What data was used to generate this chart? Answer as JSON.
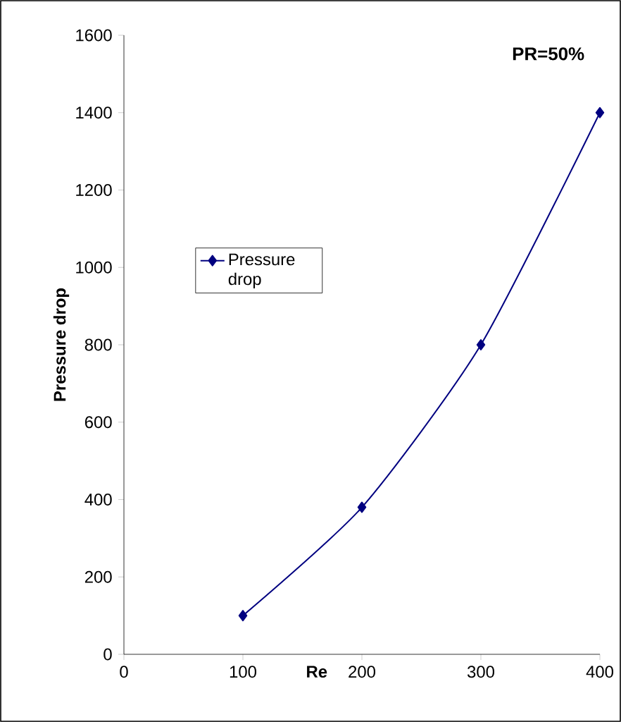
{
  "chart_data": {
    "type": "line",
    "xlabel": "Re",
    "ylabel": "Pressure drop",
    "annotations": [
      "PR=50%"
    ],
    "x": [
      100,
      200,
      300,
      400
    ],
    "series": [
      {
        "name": "Pressure drop",
        "color": "#000080",
        "values": [
          100,
          380,
          800,
          1400
        ]
      }
    ],
    "xlim": [
      0,
      400
    ],
    "xticks": [
      0,
      100,
      200,
      300,
      400
    ],
    "ylim": [
      0,
      1600
    ],
    "yticks": [
      0,
      200,
      400,
      600,
      800,
      1000,
      1200,
      1400,
      1600
    ],
    "grid": false,
    "legend": "left",
    "marker": "diamond",
    "line_style": "solid"
  }
}
